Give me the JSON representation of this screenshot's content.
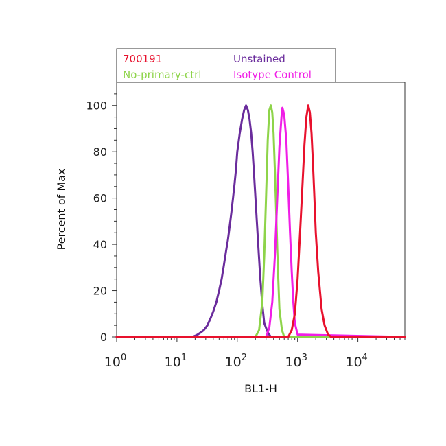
{
  "chart_data": {
    "type": "line",
    "title": "",
    "xlabel": "BL1-H",
    "ylabel": "Percent of Max",
    "xscale": "log",
    "xlim": [
      1,
      60000
    ],
    "ylim": [
      0,
      110
    ],
    "xticks": [
      {
        "value": 1,
        "base": "10",
        "exp": "0"
      },
      {
        "value": 10,
        "base": "10",
        "exp": "1"
      },
      {
        "value": 100,
        "base": "10",
        "exp": "2"
      },
      {
        "value": 1000,
        "base": "10",
        "exp": "3"
      },
      {
        "value": 10000,
        "base": "10",
        "exp": "4"
      }
    ],
    "yticks": [
      0,
      20,
      40,
      60,
      80,
      100
    ],
    "grid": false,
    "legend_position": "top",
    "series": [
      {
        "name": "700191",
        "color": "#e8112d",
        "x": [
          1,
          700,
          800,
          900,
          1000,
          1100,
          1200,
          1300,
          1400,
          1500,
          1600,
          1700,
          1800,
          1900,
          2000,
          2200,
          2500,
          2800,
          3200,
          3600,
          60000
        ],
        "y": [
          0,
          0,
          3,
          10,
          25,
          45,
          65,
          83,
          95,
          100,
          97,
          88,
          75,
          60,
          45,
          28,
          12,
          5,
          1,
          0,
          0
        ]
      },
      {
        "name": "Unstained",
        "color": "#6a2c9c",
        "x": [
          1,
          18,
          20,
          22,
          25,
          28,
          32,
          36,
          40,
          45,
          50,
          55,
          60,
          65,
          70,
          75,
          80,
          85,
          90,
          95,
          100,
          110,
          120,
          130,
          140,
          150,
          160,
          170,
          180,
          190,
          200,
          220,
          240,
          260,
          280,
          320,
          360,
          60000
        ],
        "y": [
          0,
          0,
          0.5,
          1,
          2,
          3,
          5,
          8,
          11,
          15,
          20,
          25,
          31,
          37,
          42,
          48,
          54,
          60,
          66,
          72,
          80,
          88,
          94,
          98,
          100,
          98,
          94,
          88,
          80,
          70,
          60,
          42,
          26,
          14,
          6,
          2,
          0,
          0
        ]
      },
      {
        "name": "No-primary-ctrl",
        "color": "#8ed44a",
        "x": [
          1,
          200,
          230,
          260,
          280,
          300,
          320,
          340,
          360,
          380,
          400,
          420,
          440,
          460,
          480,
          500,
          550,
          600,
          60000
        ],
        "y": [
          0,
          0,
          3,
          15,
          35,
          60,
          85,
          98,
          100,
          97,
          88,
          72,
          55,
          38,
          24,
          12,
          3,
          0,
          0
        ]
      },
      {
        "name": "Isotype Control",
        "color": "#f01ee6",
        "x": [
          1,
          300,
          340,
          380,
          420,
          460,
          500,
          540,
          560,
          600,
          650,
          700,
          750,
          800,
          850,
          900,
          1000,
          60000
        ],
        "y": [
          0,
          0,
          4,
          15,
          35,
          60,
          82,
          95,
          99,
          96,
          85,
          65,
          45,
          28,
          15,
          6,
          1,
          0
        ]
      }
    ]
  }
}
